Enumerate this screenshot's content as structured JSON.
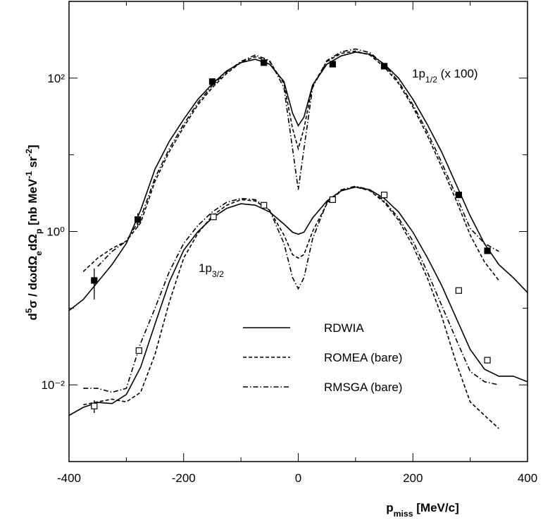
{
  "chart_data": {
    "type": "line",
    "ylog": true,
    "xlim": [
      -400,
      400
    ],
    "ylim": [
      0.001,
      1000
    ],
    "xticks": [
      -400,
      -200,
      0,
      200,
      400
    ],
    "xminor_ticks": [
      -300,
      -100,
      100,
      300
    ],
    "yticks": [
      {
        "value": 0.01,
        "label": "10⁻²"
      },
      {
        "value": 1,
        "label": "10⁰"
      },
      {
        "value": 100,
        "label": "10²"
      }
    ],
    "yminor_ticks": [
      0.001,
      0.1,
      10,
      1000
    ],
    "xlabel": [
      {
        "t": "p"
      },
      {
        "t": "miss",
        "s": "sub"
      },
      {
        "t": "  [MeV/c]"
      }
    ],
    "ylabel": [
      {
        "t": "d"
      },
      {
        "t": "5",
        "s": "sup"
      },
      {
        "t": "σ / dωdΩ"
      },
      {
        "t": "e",
        "s": "sub"
      },
      {
        "t": "dΩ"
      },
      {
        "t": "p",
        "s": "sub"
      },
      {
        "t": "   [nb MeV"
      },
      {
        "t": "-1",
        "s": "sup"
      },
      {
        "t": " sr"
      },
      {
        "t": "-2",
        "s": "sup"
      },
      {
        "t": "]"
      }
    ],
    "annotations": [
      {
        "parts": [
          {
            "t": "1p"
          },
          {
            "t": "1/2",
            "s": "sub"
          },
          {
            "t": " (x 100)"
          }
        ]
      },
      {
        "parts": [
          {
            "t": "1p"
          },
          {
            "t": "3/2",
            "s": "sub"
          }
        ]
      }
    ],
    "x": [
      -400,
      -375,
      -350,
      -325,
      -300,
      -275,
      -250,
      -225,
      -200,
      -175,
      -150,
      -125,
      -100,
      -75,
      -50,
      -25,
      -10,
      0,
      10,
      25,
      50,
      75,
      100,
      125,
      150,
      175,
      200,
      225,
      250,
      275,
      300,
      325,
      350,
      375,
      400
    ],
    "series": [
      {
        "name": "RDWIA",
        "color": "#000000",
        "dash": "solid",
        "values": [
          0.093,
          0.13,
          0.22,
          0.37,
          0.7,
          1.9,
          6.5,
          15,
          29,
          53,
          84,
          124,
          159,
          176,
          152,
          90,
          35,
          24,
          31,
          81,
          152,
          195,
          218,
          205,
          152,
          100,
          53,
          25,
          11,
          4.2,
          1.6,
          0.69,
          0.37,
          0.25,
          0.16
        ],
        "values_lower": [
          0.004,
          0.0051,
          0.0059,
          0.0057,
          0.0075,
          0.017,
          0.062,
          0.22,
          0.57,
          1.0,
          1.5,
          2.0,
          2.3,
          2.2,
          1.8,
          1.25,
          0.98,
          0.92,
          0.98,
          1.5,
          2.5,
          3.4,
          3.8,
          3.5,
          2.7,
          1.8,
          0.98,
          0.46,
          0.2,
          0.076,
          0.029,
          0.016,
          0.013,
          0.013,
          0.011
        ]
      },
      {
        "name": "ROMEA (bare)",
        "color": "#000000",
        "dash": "dashed",
        "values": [
          null,
          0.3,
          0.45,
          0.6,
          0.75,
          1.3,
          4.5,
          11,
          23,
          45,
          75,
          115,
          160,
          190,
          165,
          85,
          22,
          12,
          22,
          80,
          165,
          210,
          225,
          200,
          140,
          85,
          42,
          18,
          7,
          2.6,
          0.9,
          0.4,
          0.23,
          null,
          null
        ],
        "values_lower": [
          null,
          0.0055,
          0.006,
          0.0065,
          0.006,
          0.008,
          0.025,
          0.12,
          0.45,
          0.95,
          1.6,
          2.2,
          2.6,
          2.5,
          1.9,
          0.9,
          0.5,
          0.45,
          0.5,
          1.0,
          2.3,
          3.4,
          3.8,
          3.4,
          2.4,
          1.4,
          0.65,
          0.25,
          0.08,
          0.02,
          0.006,
          0.004,
          0.0027,
          null,
          null
        ]
      },
      {
        "name": "RMSGA (bare)",
        "color": "#000000",
        "dash": "dashdot",
        "values": [
          null,
          null,
          0.35,
          0.55,
          0.75,
          1.5,
          5,
          12,
          25,
          48,
          80,
          120,
          165,
          200,
          170,
          75,
          12,
          3.5,
          12,
          75,
          170,
          220,
          240,
          215,
          150,
          90,
          45,
          20,
          8,
          3,
          1.1,
          0.7,
          0.55,
          null,
          null
        ],
        "values_lower": [
          null,
          0.009,
          0.009,
          0.008,
          0.009,
          0.035,
          0.1,
          0.3,
          0.7,
          1.2,
          1.8,
          2.4,
          2.7,
          2.6,
          1.9,
          0.7,
          0.25,
          0.18,
          0.25,
          0.8,
          2.4,
          3.5,
          3.9,
          3.5,
          2.5,
          1.5,
          0.75,
          0.3,
          0.11,
          0.04,
          0.015,
          0.011,
          0.01,
          null,
          null
        ]
      }
    ],
    "points": [
      {
        "marker": "filled",
        "x": [
          -356,
          -280,
          -150,
          -60,
          60,
          150,
          280,
          330
        ],
        "values": [
          0.23,
          1.43,
          90,
          159,
          152,
          143,
          3.0,
          0.56
        ],
        "errors": [
          0.1,
          0.3,
          null,
          null,
          null,
          null,
          null,
          null
        ]
      },
      {
        "marker": "open",
        "x": [
          -356,
          -278,
          -148,
          -60,
          60,
          150,
          280,
          330
        ],
        "values": [
          0.0053,
          0.028,
          1.55,
          2.2,
          2.6,
          3.0,
          0.17,
          0.021
        ],
        "errors": [
          0.001,
          null,
          null,
          null,
          null,
          null,
          null,
          null
        ]
      }
    ]
  }
}
